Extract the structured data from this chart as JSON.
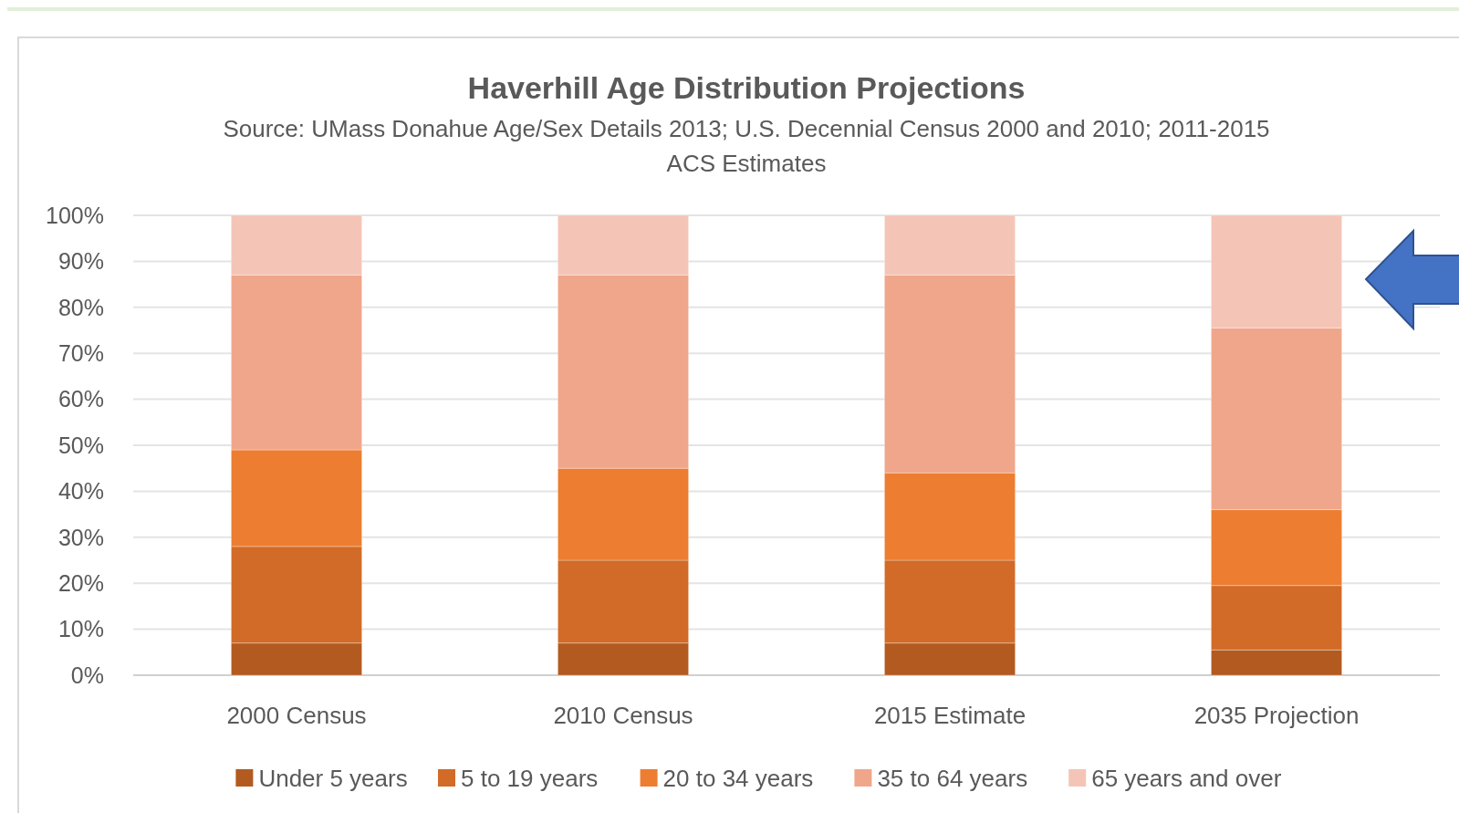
{
  "chart_data": {
    "type": "bar",
    "stacked": true,
    "title": "Haverhill Age Distribution Projections",
    "subtitle": "Source: UMass Donahue Age/Sex Details 2013; U.S. Decennial Census 2000 and 2010; 2011-2015 ACS Estimates",
    "categories": [
      "2000 Census",
      "2010 Census",
      "2015 Estimate",
      "2035 Projection"
    ],
    "series": [
      {
        "name": "Under 5 years",
        "color": "#b35a20",
        "values": [
          7,
          7,
          7,
          5.5
        ]
      },
      {
        "name": "5 to 19 years",
        "color": "#d26b27",
        "values": [
          21,
          18,
          18,
          14
        ]
      },
      {
        "name": "20 to 34 years",
        "color": "#ed7d31",
        "values": [
          21,
          20,
          19,
          16.5
        ]
      },
      {
        "name": "35 to 64 years",
        "color": "#f0a68a",
        "values": [
          38,
          42,
          43,
          39.5
        ]
      },
      {
        "name": "65 years and over",
        "color": "#f4c5b6",
        "values": [
          13,
          13,
          13,
          24.5
        ]
      }
    ],
    "ylim": [
      0,
      100
    ],
    "yticks": [
      {
        "value": 0,
        "label": "0%"
      },
      {
        "value": 10,
        "label": "10%"
      },
      {
        "value": 20,
        "label": "20%"
      },
      {
        "value": 30,
        "label": "30%"
      },
      {
        "value": 40,
        "label": "40%"
      },
      {
        "value": 50,
        "label": "50%"
      },
      {
        "value": 60,
        "label": "60%"
      },
      {
        "value": 70,
        "label": "70%"
      },
      {
        "value": 80,
        "label": "80%"
      },
      {
        "value": 90,
        "label": "90%"
      },
      {
        "value": 100,
        "label": "100%"
      }
    ],
    "grid": "y",
    "legend": "bottom"
  }
}
